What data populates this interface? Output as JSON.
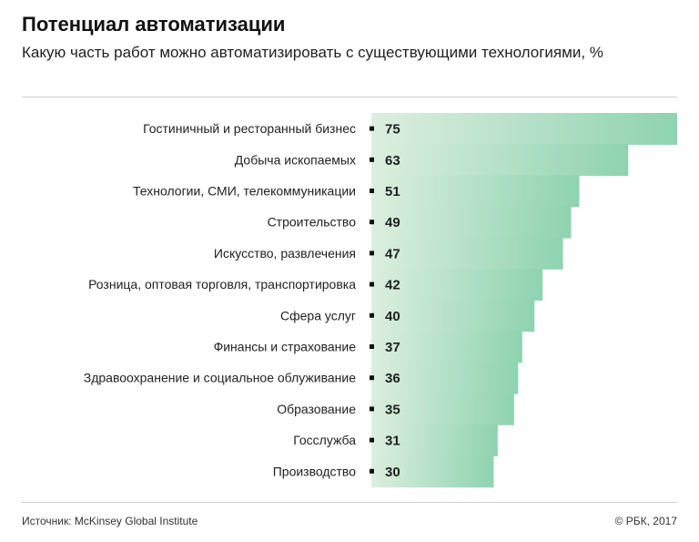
{
  "header": {
    "title": "Потенциал автоматизации",
    "subtitle": "Какую часть работ можно автоматизировать с существующими технологиями, %"
  },
  "footer": {
    "source": "Источник: McKinsey Global Institute",
    "copyright": "© РБК, 2017"
  },
  "colors": {
    "bar_start": "#dcefdf",
    "bar_end": "#8fd3b0",
    "marker": "#111111"
  },
  "chart_data": {
    "type": "bar",
    "orientation": "horizontal",
    "title": "Потенциал автоматизации",
    "subtitle": "Какую часть работ можно автоматизировать с существующими технологиями, %",
    "categories": [
      "Гостиничный и ресторанный бизнес",
      "Добыча ископаемых",
      "Технологии, СМИ, телекоммуникации",
      "Строительство",
      "Искусство, развлечения",
      "Розница, оптовая торговля, транспортировка",
      "Сфера услуг",
      "Финансы и страхование",
      "Здравоохранение и социальное облуживание",
      "Образование",
      "Госслужба",
      "Производство"
    ],
    "values": [
      75,
      63,
      51,
      49,
      47,
      42,
      40,
      37,
      36,
      35,
      31,
      30
    ],
    "xlim": [
      0,
      75
    ],
    "grid": false,
    "legend": "none",
    "data_labels": true
  }
}
